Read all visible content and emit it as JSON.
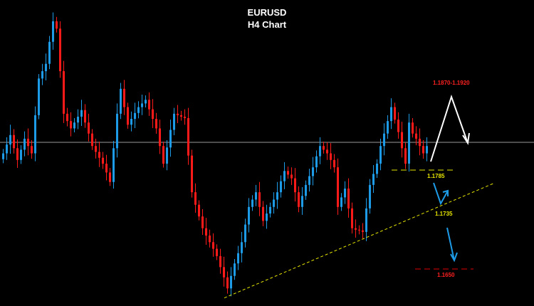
{
  "chart_data": {
    "type": "candlestick",
    "title": "EURUSD",
    "subtitle": "H4 Chart",
    "ylim": [
      1.16,
      1.2017
    ],
    "grid": false,
    "colors": {
      "background": "#000000",
      "bull": "#1e9be6",
      "bear": "#ff1a1a",
      "current_price_line": "#9a9a9a",
      "support": "#e6e600",
      "target_down": "#e00000",
      "target_up_label": "#ff2020",
      "projection_up": "#ffffff",
      "projection_down": "#1e9be6"
    },
    "closes": [
      1.1808,
      1.182,
      1.1833,
      1.1815,
      1.1799,
      1.1813,
      1.1828,
      1.1818,
      1.1808,
      1.186,
      1.191,
      1.192,
      1.193,
      1.196,
      1.1988,
      1.1978,
      1.192,
      1.1862,
      1.1852,
      1.1842,
      1.185,
      1.1858,
      1.1867,
      1.185,
      1.1835,
      1.1818,
      1.181,
      1.1802,
      1.1794,
      1.1782,
      1.1769,
      1.1815,
      1.1862,
      1.1896,
      1.1871,
      1.1847,
      1.1855,
      1.1863,
      1.1871,
      1.1876,
      1.1881,
      1.1868,
      1.1855,
      1.1842,
      1.1818,
      1.1794,
      1.1816,
      1.184,
      1.1862,
      1.186,
      1.1858,
      1.1856,
      1.1805,
      1.1755,
      1.1738,
      1.1722,
      1.1706,
      1.1696,
      1.1687,
      1.1678,
      1.1668,
      1.1653,
      1.1639,
      1.1624,
      1.1641,
      1.1658,
      1.1672,
      1.1687,
      1.1711,
      1.1735,
      1.1745,
      1.1755,
      1.1735,
      1.1716,
      1.1726,
      1.1735,
      1.1745,
      1.1755,
      1.177,
      1.1784,
      1.1779,
      1.1774,
      1.1755,
      1.1735,
      1.175,
      1.1765,
      1.1777,
      1.1789,
      1.1804,
      1.1818,
      1.1813,
      1.1808,
      1.1799,
      1.1789,
      1.1735,
      1.1748,
      1.176,
      1.1733,
      1.1706,
      1.1704,
      1.1703,
      1.1701,
      1.1733,
      1.1765,
      1.178,
      1.1794,
      1.1818,
      1.1835,
      1.1852,
      1.1871,
      1.1854,
      1.1837,
      1.1815,
      1.1794,
      1.185,
      1.1835,
      1.1828,
      1.1818,
      1.1808,
      1.1818
    ],
    "current_price": 1.1823,
    "trendline": {
      "from": [
        62.4,
        1.1611
      ],
      "to": [
        138,
        1.1767
      ]
    },
    "annotations": {
      "target_up": "1.1870-1.1920",
      "support": "1.1785",
      "trendline_level": "1.1735",
      "target_down": "1.1650"
    }
  }
}
